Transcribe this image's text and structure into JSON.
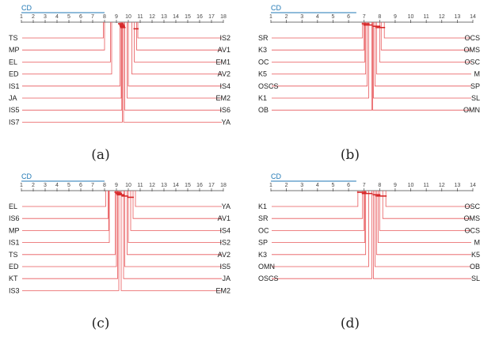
{
  "chart_data": [
    {
      "type": "critical-difference-diagram",
      "panel_label": "(a)",
      "cd_label": "CD",
      "cd_value": 7,
      "axis_range": [
        1,
        18
      ],
      "ticks": [
        "1",
        "2",
        "3",
        "4",
        "5",
        "6",
        "7",
        "8",
        "9",
        "10",
        "11",
        "12",
        "13",
        "14",
        "15",
        "16",
        "17",
        "18"
      ],
      "left": [
        {
          "name": "TS",
          "rank": 7.9
        },
        {
          "name": "MP",
          "rank": 8.0
        },
        {
          "name": "EL",
          "rank": 8.5
        },
        {
          "name": "ED",
          "rank": 8.6
        },
        {
          "name": "IS1",
          "rank": 9.3
        },
        {
          "name": "JA",
          "rank": 9.4
        },
        {
          "name": "IS5",
          "rank": 9.45
        },
        {
          "name": "IS7",
          "rank": 9.5
        }
      ],
      "right": [
        {
          "name": "IS2",
          "rank": 10.8
        },
        {
          "name": "AV1",
          "rank": 10.7
        },
        {
          "name": "EM1",
          "rank": 10.5
        },
        {
          "name": "AV2",
          "rank": 10.3
        },
        {
          "name": "IS4",
          "rank": 10.0
        },
        {
          "name": "EM2",
          "rank": 9.9
        },
        {
          "name": "IS6",
          "rank": 9.7
        },
        {
          "name": "YA",
          "rank": 9.6
        }
      ],
      "cliques": [
        [
          9.2,
          9.55
        ],
        [
          9.3,
          9.6
        ],
        [
          9.35,
          9.65
        ],
        [
          9.4,
          9.7
        ],
        [
          10.5,
          10.8
        ]
      ]
    },
    {
      "type": "critical-difference-diagram",
      "panel_label": "(b)",
      "cd_label": "CD",
      "cd_value": 5.5,
      "axis_range": [
        1,
        14
      ],
      "ticks": [
        "1",
        "2",
        "3",
        "4",
        "5",
        "6",
        "7",
        "8",
        "9",
        "10",
        "11",
        "12",
        "13",
        "14"
      ],
      "left": [
        {
          "name": "SR",
          "rank": 6.9
        },
        {
          "name": "K3",
          "rank": 7.0
        },
        {
          "name": "OC",
          "rank": 7.05
        },
        {
          "name": "K5",
          "rank": 7.1
        },
        {
          "name": "OSCS",
          "rank": 7.2
        },
        {
          "name": "K1",
          "rank": 7.3
        },
        {
          "name": "OB",
          "rank": 7.5
        }
      ],
      "right": [
        {
          "name": "OCS",
          "rank": 8.3
        },
        {
          "name": "OMS",
          "rank": 8.1
        },
        {
          "name": "OSC",
          "rank": 8.0
        },
        {
          "name": "M",
          "rank": 7.8
        },
        {
          "name": "SP",
          "rank": 7.7
        },
        {
          "name": "SL",
          "rank": 7.6
        },
        {
          "name": "OMN",
          "rank": 7.55
        }
      ],
      "cliques": [
        [
          6.9,
          7.3
        ],
        [
          7.0,
          7.5
        ],
        [
          7.6,
          8.0
        ],
        [
          7.8,
          8.3
        ]
      ]
    },
    {
      "type": "critical-difference-diagram",
      "panel_label": "(c)",
      "cd_label": "CD",
      "cd_value": 7,
      "axis_range": [
        1,
        18
      ],
      "ticks": [
        "1",
        "2",
        "3",
        "4",
        "5",
        "6",
        "7",
        "8",
        "9",
        "10",
        "11",
        "12",
        "13",
        "14",
        "15",
        "16",
        "17",
        "18"
      ],
      "left": [
        {
          "name": "EL",
          "rank": 8.1
        },
        {
          "name": "IS6",
          "rank": 8.3
        },
        {
          "name": "MP",
          "rank": 8.35
        },
        {
          "name": "IS1",
          "rank": 8.4
        },
        {
          "name": "TS",
          "rank": 8.9
        },
        {
          "name": "ED",
          "rank": 9.0
        },
        {
          "name": "KT",
          "rank": 9.1
        },
        {
          "name": "IS3",
          "rank": 9.2
        }
      ],
      "right": [
        {
          "name": "YA",
          "rank": 10.6
        },
        {
          "name": "AV1",
          "rank": 10.4
        },
        {
          "name": "IS4",
          "rank": 10.2
        },
        {
          "name": "IS2",
          "rank": 10.0
        },
        {
          "name": "AV2",
          "rank": 9.9
        },
        {
          "name": "IS5",
          "rank": 9.7
        },
        {
          "name": "JA",
          "rank": 9.6
        },
        {
          "name": "EM2",
          "rank": 9.4
        }
      ],
      "cliques": [
        [
          8.9,
          9.3
        ],
        [
          9.0,
          9.4
        ],
        [
          9.1,
          9.6
        ],
        [
          9.5,
          9.9
        ],
        [
          10.0,
          10.4
        ]
      ]
    },
    {
      "type": "critical-difference-diagram",
      "panel_label": "(d)",
      "cd_label": "CD",
      "cd_value": 5.5,
      "axis_range": [
        1,
        14
      ],
      "ticks": [
        "1",
        "2",
        "3",
        "4",
        "5",
        "6",
        "7",
        "8",
        "9",
        "10",
        "11",
        "12",
        "13",
        "14"
      ],
      "left": [
        {
          "name": "K1",
          "rank": 6.6
        },
        {
          "name": "SR",
          "rank": 6.9
        },
        {
          "name": "OC",
          "rank": 7.0
        },
        {
          "name": "SP",
          "rank": 7.05
        },
        {
          "name": "K3",
          "rank": 7.1
        },
        {
          "name": "OMN",
          "rank": 7.3
        },
        {
          "name": "OSCS",
          "rank": 7.5
        }
      ],
      "right": [
        {
          "name": "OSC",
          "rank": 8.4
        },
        {
          "name": "OMS",
          "rank": 8.2
        },
        {
          "name": "OCS",
          "rank": 8.0
        },
        {
          "name": "M",
          "rank": 7.9
        },
        {
          "name": "K5",
          "rank": 7.8
        },
        {
          "name": "OB",
          "rank": 7.7
        },
        {
          "name": "SL",
          "rank": 7.6
        }
      ],
      "cliques": [
        [
          6.6,
          7.1
        ],
        [
          6.9,
          7.5
        ],
        [
          7.6,
          8.0
        ],
        [
          7.8,
          8.4
        ]
      ]
    }
  ],
  "colors": {
    "line": "#e8585b",
    "bar": "#d62728",
    "cd": "#1f77b4",
    "axis": "#444444",
    "text": "#222222"
  }
}
